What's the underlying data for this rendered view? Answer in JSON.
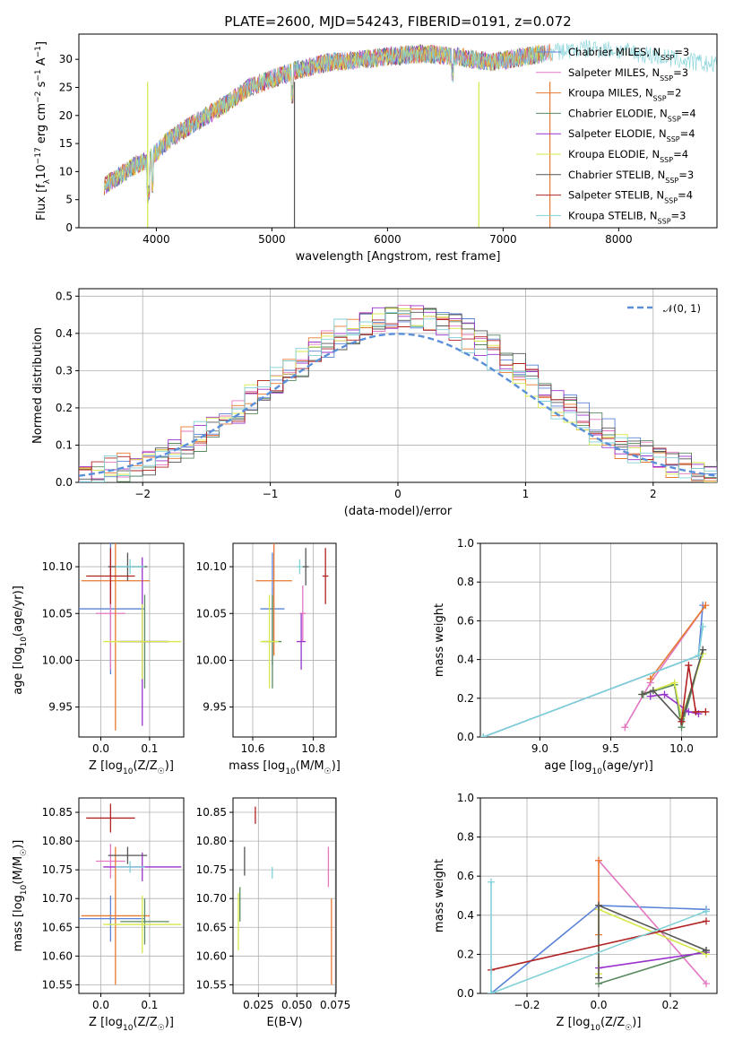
{
  "chart_data": [
    {
      "id": "spectrum",
      "type": "line",
      "title": "PLATE=2600, MJD=54243, FIBERID=0191, z=0.072",
      "xlabel": "wavelength [Angstrom, rest frame]",
      "ylabel": "Flux [f_λ 10^-17 erg cm^-2 s^-1 A^-1]",
      "xlim": [
        3330,
        8850
      ],
      "ylim": [
        0,
        34.5
      ],
      "xticks": [
        "4000",
        "5000",
        "6000",
        "7000",
        "8000"
      ],
      "yticks": [
        "0",
        "5",
        "10",
        "15",
        "20",
        "25",
        "30"
      ],
      "grid": false,
      "legend_position": "right",
      "continuum": [
        [
          3550,
          7.5
        ],
        [
          3700,
          9.5
        ],
        [
          3850,
          11.5
        ],
        [
          3930,
          12.0
        ],
        [
          4000,
          13.5
        ],
        [
          4100,
          15.5
        ],
        [
          4200,
          17.0
        ],
        [
          4400,
          19.5
        ],
        [
          4600,
          22.0
        ],
        [
          4800,
          25.0
        ],
        [
          5000,
          26.5
        ],
        [
          5200,
          28.0
        ],
        [
          5500,
          29.5
        ],
        [
          5800,
          30.0
        ],
        [
          6000,
          30.5
        ],
        [
          6300,
          31.0
        ],
        [
          6600,
          30.5
        ],
        [
          6900,
          29.5
        ],
        [
          7200,
          30.5
        ],
        [
          7500,
          31.5
        ],
        [
          7800,
          32.0
        ],
        [
          8200,
          31.0
        ],
        [
          8500,
          30.0
        ],
        [
          8800,
          29.0
        ]
      ],
      "series": [
        {
          "name": "Chabrier MILES, N_SSP=3",
          "color": "#5b83d8"
        },
        {
          "name": "Salpeter MILES, N_SSP=3",
          "color": "#e377c2"
        },
        {
          "name": "Kroupa MILES, N_SSP=2",
          "color": "#e87a30"
        },
        {
          "name": "Chabrier ELODIE, N_SSP=4",
          "color": "#5a8a5f"
        },
        {
          "name": "Salpeter ELODIE, N_SSP=4",
          "color": "#9932cc"
        },
        {
          "name": "Kroupa ELODIE, N_SSP=4",
          "color": "#d6e84a"
        },
        {
          "name": "Chabrier STELIB, N_SSP=3",
          "color": "#555555"
        },
        {
          "name": "Salpeter STELIB, N_SSP=4",
          "color": "#b22222"
        },
        {
          "name": "Kroupa STELIB, N_SSP=3",
          "color": "#80d0d8"
        }
      ]
    },
    {
      "id": "residuals",
      "type": "histogram",
      "xlabel": "(data-model)/error",
      "ylabel": "Normed distribution",
      "xlim": [
        -2.5,
        2.5
      ],
      "ylim": [
        0,
        0.52
      ],
      "xticks": [
        "−2",
        "−1",
        "0",
        "1",
        "2"
      ],
      "yticks": [
        "0.0",
        "0.1",
        "0.2",
        "0.3",
        "0.4",
        "0.5"
      ],
      "grid": true,
      "legend": "𝒩(0, 1)",
      "legend_position": "top-right",
      "bin_width": 0.1
    },
    {
      "id": "age-vs-Z",
      "type": "errorbar",
      "xlabel": "Z [log10(Z/Z☉)]",
      "ylabel": "age  [log10(age/yr)]",
      "xlim": [
        -0.045,
        0.17
      ],
      "ylim": [
        9.918,
        10.125
      ],
      "xticks": [
        "0.0",
        "0.1"
      ],
      "yticks": [
        "9.95",
        "10.00",
        "10.05",
        "10.10"
      ],
      "grid": true,
      "points": [
        {
          "x": 0.02,
          "y": 10.055,
          "xerr": 0.07,
          "yerr": 0.07,
          "color": "#5b83d8"
        },
        {
          "x": 0.02,
          "y": 10.05,
          "xerr": 0.03,
          "yerr": 0.06,
          "color": "#e377c2"
        },
        {
          "x": 0.03,
          "y": 10.085,
          "xerr": 0.07,
          "yerr": 0.16,
          "color": "#e87a30"
        },
        {
          "x": 0.09,
          "y": 10.02,
          "xerr": 0.05,
          "yerr": 0.05,
          "color": "#5a8a5f"
        },
        {
          "x": 0.085,
          "y": 10.02,
          "xerr": 0.05,
          "yerr": 0.09,
          "color": "#9932cc"
        },
        {
          "x": 0.085,
          "y": 10.02,
          "xerr": 0.08,
          "yerr": 0.04,
          "color": "#d6e84a"
        },
        {
          "x": 0.055,
          "y": 10.1,
          "xerr": 0.04,
          "yerr": 0.015,
          "color": "#555555"
        },
        {
          "x": 0.02,
          "y": 10.09,
          "xerr": 0.05,
          "yerr": 0.03,
          "color": "#b22222"
        },
        {
          "x": 0.06,
          "y": 10.1,
          "xerr": 0.03,
          "yerr": 0.008,
          "color": "#80d0d8"
        }
      ]
    },
    {
      "id": "age-vs-mass",
      "type": "errorbar",
      "xlabel": "mass [log10(M/M☉)]",
      "ylabel": "",
      "xlim": [
        10.535,
        10.875
      ],
      "ylim": [
        9.918,
        10.125
      ],
      "xticks": [
        "10.6",
        "10.8"
      ],
      "yticks": [
        "9.95",
        "10.00",
        "10.05",
        "10.10"
      ],
      "grid": true,
      "points": [
        {
          "x": 10.665,
          "y": 10.055,
          "xerr": 0.04,
          "yerr": 0.06,
          "color": "#5b83d8"
        },
        {
          "x": 10.765,
          "y": 10.05,
          "xerr": 0.01,
          "yerr": 0.03,
          "color": "#e377c2"
        },
        {
          "x": 10.67,
          "y": 10.085,
          "xerr": 0.06,
          "yerr": 0.08,
          "color": "#e87a30"
        },
        {
          "x": 10.665,
          "y": 10.02,
          "xerr": 0.03,
          "yerr": 0.05,
          "color": "#5a8a5f"
        },
        {
          "x": 10.76,
          "y": 10.02,
          "xerr": 0.015,
          "yerr": 0.03,
          "color": "#9932cc"
        },
        {
          "x": 10.655,
          "y": 10.02,
          "xerr": 0.03,
          "yerr": 0.05,
          "color": "#d6e84a"
        },
        {
          "x": 10.775,
          "y": 10.1,
          "xerr": 0.01,
          "yerr": 0.02,
          "color": "#555555"
        },
        {
          "x": 10.84,
          "y": 10.09,
          "xerr": 0.01,
          "yerr": 0.03,
          "color": "#b22222"
        },
        {
          "x": 10.755,
          "y": 10.1,
          "xerr": 0.01,
          "yerr": 0.008,
          "color": "#80d0d8"
        }
      ]
    },
    {
      "id": "mass-weight-vs-age",
      "type": "line",
      "xlabel": "age  [log10(age/yr)]",
      "ylabel": "mass weight",
      "xlim": [
        8.58,
        10.25
      ],
      "ylim": [
        0,
        1.0
      ],
      "xticks": [
        "9.0",
        "9.5",
        "10.0"
      ],
      "yticks": [
        "0.0",
        "0.2",
        "0.4",
        "0.6",
        "0.8",
        "1.0"
      ],
      "grid": true,
      "series": [
        {
          "color": "#5b83d8",
          "x": [
            8.6,
            10.12,
            10.15
          ],
          "y": [
            0.0,
            0.42,
            0.68
          ]
        },
        {
          "color": "#e377c2",
          "x": [
            9.6,
            9.78,
            10.17
          ],
          "y": [
            0.05,
            0.28,
            0.68
          ]
        },
        {
          "color": "#e87a30",
          "x": [
            9.78,
            10.17
          ],
          "y": [
            0.3,
            0.68
          ]
        },
        {
          "color": "#5a8a5f",
          "x": [
            9.73,
            9.95,
            10.0,
            10.15
          ],
          "y": [
            0.22,
            0.27,
            0.05,
            0.45
          ]
        },
        {
          "color": "#9932cc",
          "x": [
            9.78,
            9.88,
            10.05,
            10.12
          ],
          "y": [
            0.21,
            0.22,
            0.13,
            0.12
          ]
        },
        {
          "color": "#d6e84a",
          "x": [
            9.72,
            9.95,
            10.0,
            10.15
          ],
          "y": [
            0.22,
            0.28,
            0.1,
            0.43
          ]
        },
        {
          "color": "#555555",
          "x": [
            9.72,
            9.8,
            10.0,
            10.15
          ],
          "y": [
            0.22,
            0.24,
            0.08,
            0.45
          ]
        },
        {
          "color": "#b22222",
          "x": [
            10.0,
            10.05,
            10.1,
            10.17
          ],
          "y": [
            0.08,
            0.37,
            0.13,
            0.13
          ]
        },
        {
          "color": "#80d0d8",
          "x": [
            8.6,
            10.12,
            10.15
          ],
          "y": [
            0.0,
            0.42,
            0.57
          ]
        }
      ]
    },
    {
      "id": "mass-vs-Z",
      "type": "errorbar",
      "xlabel": "Z [log10(Z/Z☉)]",
      "ylabel": "mass [log10(M/M☉)]",
      "xlim": [
        -0.045,
        0.17
      ],
      "ylim": [
        10.535,
        10.875
      ],
      "xticks": [
        "0.0",
        "0.1"
      ],
      "yticks": [
        "10.55",
        "10.60",
        "10.65",
        "10.70",
        "10.75",
        "10.80",
        "10.85"
      ],
      "grid": true,
      "points": [
        {
          "x": 0.02,
          "y": 10.665,
          "xerr": 0.07,
          "yerr": 0.04,
          "color": "#5b83d8"
        },
        {
          "x": 0.02,
          "y": 10.765,
          "xerr": 0.03,
          "yerr": 0.03,
          "color": "#e377c2"
        },
        {
          "x": 0.03,
          "y": 10.67,
          "xerr": 0.07,
          "yerr": 0.12,
          "color": "#e87a30"
        },
        {
          "x": 0.09,
          "y": 10.66,
          "xerr": 0.05,
          "yerr": 0.04,
          "color": "#5a8a5f"
        },
        {
          "x": 0.085,
          "y": 10.755,
          "xerr": 0.08,
          "yerr": 0.025,
          "color": "#9932cc"
        },
        {
          "x": 0.085,
          "y": 10.655,
          "xerr": 0.08,
          "yerr": 0.05,
          "color": "#d6e84a"
        },
        {
          "x": 0.055,
          "y": 10.775,
          "xerr": 0.04,
          "yerr": 0.015,
          "color": "#555555"
        },
        {
          "x": 0.02,
          "y": 10.84,
          "xerr": 0.05,
          "yerr": 0.025,
          "color": "#b22222"
        },
        {
          "x": 0.06,
          "y": 10.755,
          "xerr": 0.03,
          "yerr": 0.01,
          "color": "#80d0d8"
        }
      ]
    },
    {
      "id": "mass-vs-ebv",
      "type": "errorbar",
      "xlabel": "E(B-V)",
      "ylabel": "",
      "xlim": [
        0.0085,
        0.0755
      ],
      "ylim": [
        10.535,
        10.875
      ],
      "xticks": [
        "0.025",
        "0.050",
        "0.075"
      ],
      "yticks": [
        "10.55",
        "10.60",
        "10.65",
        "10.70",
        "10.75",
        "10.80",
        "10.85"
      ],
      "grid": true,
      "points": [
        {
          "x": 0.0725,
          "y": 10.625,
          "xerr": 0,
          "yerr": 0.075,
          "color": "#e87a30"
        },
        {
          "x": 0.0705,
          "y": 10.755,
          "xerr": 0,
          "yerr": 0.035,
          "color": "#e377c2"
        },
        {
          "x": 0.034,
          "y": 10.745,
          "xerr": 0,
          "yerr": 0.01,
          "color": "#80d0d8"
        },
        {
          "x": 0.023,
          "y": 10.845,
          "xerr": 0,
          "yerr": 0.015,
          "color": "#b22222"
        },
        {
          "x": 0.016,
          "y": 10.765,
          "xerr": 0,
          "yerr": 0.025,
          "color": "#555555"
        },
        {
          "x": 0.013,
          "y": 10.69,
          "xerr": 0,
          "yerr": 0.03,
          "color": "#5a8a5f"
        },
        {
          "x": 0.012,
          "y": 10.66,
          "xerr": 0,
          "yerr": 0.05,
          "color": "#d6e84a"
        }
      ]
    },
    {
      "id": "mass-weight-vs-Z",
      "type": "line",
      "xlabel": "Z [log10(Z/Z☉)]",
      "ylabel": "mass weight",
      "xlim": [
        -0.33,
        0.33
      ],
      "ylim": [
        0,
        1.0
      ],
      "xticks": [
        "−0.2",
        "0.0",
        "0.2"
      ],
      "yticks": [
        "0.0",
        "0.2",
        "0.4",
        "0.6",
        "0.8",
        "1.0"
      ],
      "grid": true,
      "series": [
        {
          "color": "#5b83d8",
          "x": [
            -0.3,
            0.0,
            0.3
          ],
          "y": [
            0.0,
            0.45,
            0.43
          ]
        },
        {
          "color": "#e377c2",
          "x": [
            0.0,
            0.3
          ],
          "y": [
            0.68,
            0.05
          ]
        },
        {
          "color": "#e87a30",
          "x": [
            0.0,
            0.0,
            0.0
          ],
          "y": [
            0.3,
            0.68,
            0.45
          ]
        },
        {
          "color": "#5a8a5f",
          "x": [
            0.0,
            0.3
          ],
          "y": [
            0.05,
            0.22
          ]
        },
        {
          "color": "#9932cc",
          "x": [
            0.0,
            0.3
          ],
          "y": [
            0.13,
            0.21
          ]
        },
        {
          "color": "#d6e84a",
          "x": [
            0.0,
            0.0,
            0.3
          ],
          "y": [
            0.1,
            0.43,
            0.2
          ]
        },
        {
          "color": "#555555",
          "x": [
            0.0,
            0.0,
            0.3
          ],
          "y": [
            0.08,
            0.45,
            0.22
          ]
        },
        {
          "color": "#b22222",
          "x": [
            -0.3,
            0.3
          ],
          "y": [
            0.12,
            0.37
          ]
        },
        {
          "color": "#80d0d8",
          "x": [
            -0.3,
            -0.3,
            0.3
          ],
          "y": [
            0.57,
            0.0,
            0.42
          ]
        }
      ]
    }
  ]
}
